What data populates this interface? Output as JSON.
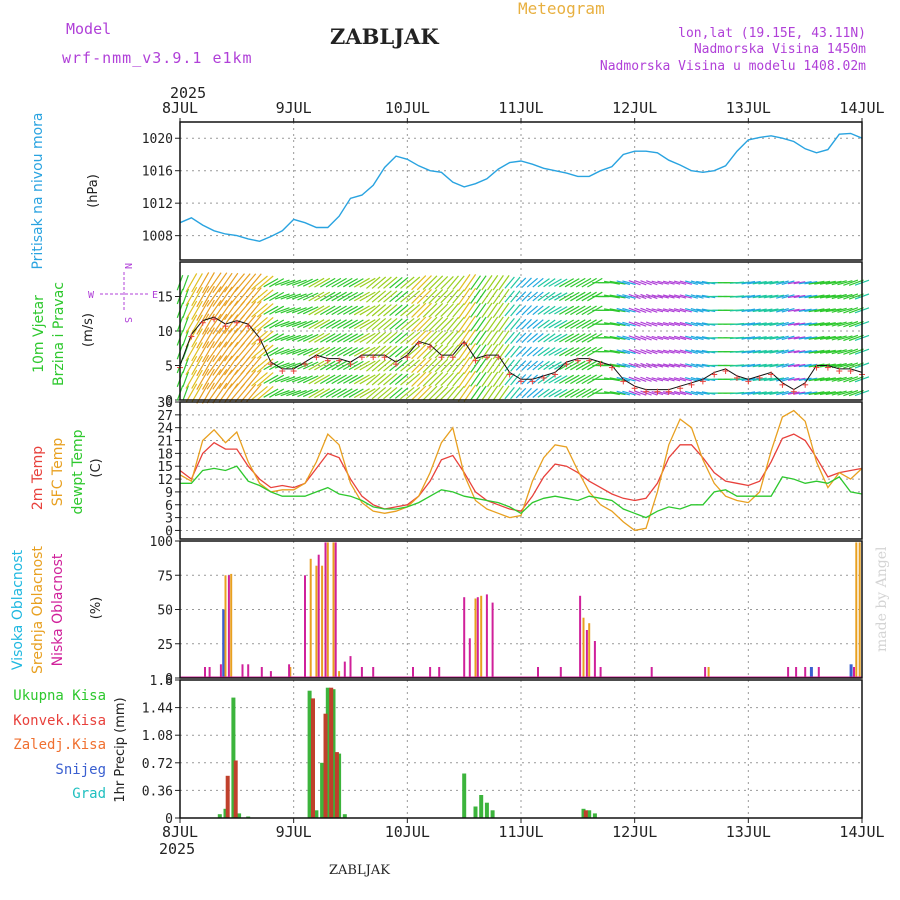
{
  "header": {
    "model_label": "Model",
    "model_name": "wrf-nmm_v3.9.1 e1km",
    "station": "ZABLJAK",
    "title": "Meteogram",
    "coords": "lon,lat (19.15E, 43.11N)",
    "elevation": "Nadmorska Visina 1450m",
    "model_elevation": "Nadmorska Visina u modelu 1408.02m",
    "year_top": "2025",
    "year_bottom": "2025",
    "footer_station": "ZABLJAK",
    "watermark": "made by Angel"
  },
  "colors": {
    "pressure": "#29a3e0",
    "red": "#e8413c",
    "orange": "#e8a020",
    "green": "#2ec82e",
    "purple": "#b040d8",
    "blue": "#3a5fd0",
    "magenta": "#d0209a",
    "cyan": "#20c0c0"
  },
  "chart_data": [
    {
      "type": "line",
      "name": "pressure",
      "ylabel_series": "Pritisak na nivou mora",
      "ylabel_unit": "(hPa)",
      "x_ticks": [
        "8JUL",
        "9JUL",
        "10JUL",
        "11JUL",
        "12JUL",
        "13JUL",
        "14JUL"
      ],
      "ylim": [
        1005,
        1022
      ],
      "y_ticks": [
        "1020",
        "1016",
        "1012",
        "1008"
      ],
      "x": [
        0,
        0.1,
        0.2,
        0.3,
        0.4,
        0.5,
        0.6,
        0.7,
        0.8,
        0.9,
        1.0,
        1.1,
        1.2,
        1.3,
        1.4,
        1.5,
        1.6,
        1.7,
        1.8,
        1.9,
        2.0,
        2.1,
        2.2,
        2.3,
        2.4,
        2.5,
        2.6,
        2.7,
        2.8,
        2.9,
        3.0,
        3.1,
        3.2,
        3.3,
        3.4,
        3.5,
        3.6,
        3.7,
        3.8,
        3.9,
        4.0,
        4.1,
        4.2,
        4.3,
        4.4,
        4.5,
        4.6,
        4.7,
        4.8,
        4.9,
        5.0,
        5.1,
        5.2,
        5.3,
        5.4,
        5.5,
        5.6,
        5.7,
        5.8,
        5.9,
        6.0
      ],
      "values": [
        1009.6,
        1010.2,
        1009.3,
        1008.6,
        1008.2,
        1008.0,
        1007.6,
        1007.3,
        1007.9,
        1008.6,
        1010.0,
        1009.6,
        1009.0,
        1009.0,
        1010.4,
        1012.6,
        1013.0,
        1014.2,
        1016.4,
        1017.8,
        1017.4,
        1016.6,
        1016.0,
        1015.8,
        1014.6,
        1014.0,
        1014.4,
        1015.0,
        1016.2,
        1017.0,
        1017.2,
        1016.8,
        1016.3,
        1016.0,
        1015.7,
        1015.3,
        1015.3,
        1016.0,
        1016.5,
        1018.0,
        1018.4,
        1018.4,
        1018.2,
        1017.3,
        1016.7,
        1016.0,
        1015.8,
        1016.0,
        1016.6,
        1018.4,
        1019.8,
        1020.1,
        1020.3,
        1020.0,
        1019.6,
        1018.7,
        1018.2,
        1018.6,
        1020.5,
        1020.6,
        1020.0
      ]
    },
    {
      "type": "line",
      "name": "wind",
      "ylabel_series_1": "10m Vjetar",
      "ylabel_series_2": "Brzina i Pravac",
      "ylabel_unit": "(m/s)",
      "compass_n": "N",
      "compass_s": "S",
      "compass_w": "W",
      "compass_e": "E",
      "ylim": [
        0,
        20
      ],
      "y_ticks": [
        "15",
        "10",
        "5",
        "0"
      ],
      "x": [
        0,
        0.1,
        0.2,
        0.3,
        0.4,
        0.5,
        0.6,
        0.7,
        0.8,
        0.9,
        1.0,
        1.1,
        1.2,
        1.3,
        1.4,
        1.5,
        1.6,
        1.7,
        1.8,
        1.9,
        2.0,
        2.1,
        2.2,
        2.3,
        2.4,
        2.5,
        2.6,
        2.7,
        2.8,
        2.9,
        3.0,
        3.1,
        3.2,
        3.3,
        3.4,
        3.5,
        3.6,
        3.7,
        3.8,
        3.9,
        4.0,
        4.1,
        4.2,
        4.3,
        4.4,
        4.5,
        4.6,
        4.7,
        4.8,
        4.9,
        5.0,
        5.1,
        5.2,
        5.3,
        5.4,
        5.5,
        5.6,
        5.7,
        5.8,
        5.9,
        6.0
      ],
      "speed": [
        5.0,
        9.5,
        11.5,
        12.0,
        11.0,
        11.5,
        11.0,
        9.0,
        5.5,
        4.5,
        4.5,
        5.5,
        6.5,
        6.0,
        6.0,
        5.5,
        6.5,
        6.5,
        6.5,
        5.5,
        6.5,
        8.5,
        8.0,
        6.5,
        6.5,
        8.5,
        6.0,
        6.5,
        6.5,
        4.0,
        3.0,
        3.0,
        3.5,
        4.0,
        5.5,
        6.0,
        6.0,
        5.5,
        5.0,
        3.0,
        2.0,
        1.5,
        1.5,
        1.5,
        2.0,
        2.5,
        3.0,
        4.0,
        4.5,
        3.5,
        3.0,
        3.5,
        4.0,
        2.5,
        1.5,
        2.5,
        5.0,
        5.0,
        4.5,
        4.5,
        4.0
      ],
      "direction_deg": [
        200,
        210,
        210,
        215,
        215,
        220,
        220,
        230,
        240,
        250,
        250,
        245,
        240,
        240,
        240,
        240,
        240,
        230,
        230,
        230,
        230,
        225,
        225,
        225,
        220,
        215,
        215,
        215,
        215,
        220,
        225,
        230,
        235,
        240,
        240,
        240,
        240,
        270,
        280,
        285,
        290,
        290,
        285,
        285,
        285,
        285,
        280,
        270,
        270,
        265,
        260,
        260,
        260,
        255,
        260,
        260,
        260,
        260,
        255,
        250,
        250
      ]
    },
    {
      "type": "line",
      "name": "temperature",
      "ylabel_series_1": "2m Temp",
      "ylabel_series_2": "SFC Temp",
      "ylabel_series_3": "dewpt Temp",
      "ylabel_unit": "(C)",
      "ylim": [
        -2,
        30
      ],
      "y_ticks": [
        "30",
        "27",
        "24",
        "21",
        "18",
        "15",
        "12",
        "9",
        "6",
        "3",
        "0"
      ],
      "x": [
        0,
        0.1,
        0.2,
        0.3,
        0.4,
        0.5,
        0.6,
        0.7,
        0.8,
        0.9,
        1.0,
        1.1,
        1.2,
        1.3,
        1.4,
        1.5,
        1.6,
        1.7,
        1.8,
        1.9,
        2.0,
        2.1,
        2.2,
        2.3,
        2.4,
        2.5,
        2.6,
        2.7,
        2.8,
        2.9,
        3.0,
        3.1,
        3.2,
        3.3,
        3.4,
        3.5,
        3.6,
        3.7,
        3.8,
        3.9,
        4.0,
        4.1,
        4.2,
        4.3,
        4.4,
        4.5,
        4.6,
        4.7,
        4.8,
        4.9,
        5.0,
        5.1,
        5.2,
        5.3,
        5.4,
        5.5,
        5.6,
        5.7,
        5.8,
        5.9,
        6.0
      ],
      "series": [
        {
          "name": "2m Temp",
          "values": [
            14.0,
            12.0,
            18.0,
            20.5,
            19.0,
            19.0,
            15.0,
            12.0,
            10.0,
            10.5,
            10.0,
            11.0,
            14.5,
            18.0,
            17.0,
            12.0,
            8.0,
            6.0,
            5.0,
            5.5,
            6.0,
            8.0,
            11.5,
            16.5,
            17.5,
            13.5,
            9.0,
            7.0,
            6.0,
            5.0,
            4.5,
            8.0,
            12.5,
            15.5,
            15.0,
            13.5,
            11.5,
            10.0,
            8.5,
            7.5,
            7.0,
            7.5,
            11.0,
            17.0,
            20.0,
            20.0,
            17.0,
            13.5,
            11.5,
            11.0,
            10.5,
            11.5,
            16.0,
            21.5,
            22.5,
            21.0,
            17.0,
            12.5,
            13.5,
            14.0,
            14.5
          ]
        },
        {
          "name": "SFC Temp",
          "values": [
            13.0,
            11.5,
            21.0,
            23.5,
            20.5,
            23.0,
            16.0,
            11.0,
            9.0,
            9.5,
            9.5,
            11.0,
            16.0,
            22.5,
            20.0,
            11.0,
            6.5,
            4.5,
            4.0,
            4.5,
            5.5,
            8.0,
            13.5,
            20.5,
            24.0,
            13.0,
            7.0,
            5.0,
            4.0,
            3.0,
            3.5,
            11.5,
            17.0,
            20.0,
            19.5,
            14.0,
            9.0,
            6.0,
            4.5,
            2.0,
            0.0,
            0.5,
            9.0,
            20.0,
            26.0,
            24.0,
            16.5,
            11.0,
            8.0,
            7.0,
            6.5,
            9.0,
            18.5,
            26.5,
            28.0,
            25.5,
            16.0,
            10.0,
            13.5,
            12.0,
            14.5
          ]
        },
        {
          "name": "dewpt Temp",
          "values": [
            11.0,
            11.0,
            14.0,
            14.5,
            14.0,
            15.0,
            11.5,
            10.5,
            9.0,
            8.0,
            8.0,
            8.0,
            9.0,
            10.0,
            8.5,
            8.0,
            7.0,
            5.5,
            5.0,
            5.0,
            5.5,
            6.5,
            8.0,
            9.5,
            9.0,
            8.0,
            7.5,
            7.0,
            6.5,
            5.5,
            4.0,
            6.5,
            7.5,
            8.0,
            7.5,
            7.0,
            8.0,
            7.5,
            7.0,
            5.0,
            4.0,
            3.0,
            4.5,
            5.5,
            5.0,
            6.0,
            6.0,
            9.0,
            9.5,
            8.0,
            8.0,
            8.0,
            8.0,
            12.5,
            12.0,
            11.0,
            11.5,
            11.0,
            12.5,
            9.0,
            8.5
          ]
        }
      ]
    },
    {
      "type": "bar",
      "name": "cloud",
      "ylabel_series_1": "Visoka Oblacnost",
      "ylabel_series_2": "Srednja Oblacnost",
      "ylabel_series_3": "Niska Oblacnost",
      "ylabel_unit": "(%)",
      "ylim": [
        0,
        100
      ],
      "y_ticks": [
        "100",
        "75",
        "50",
        "25",
        "0"
      ],
      "series": [
        {
          "name": "Visoka",
          "points": [
            [
              0.38,
              50
            ],
            [
              5.55,
              8
            ],
            [
              5.9,
              10
            ]
          ]
        },
        {
          "name": "Srednja",
          "points": [
            [
              0.4,
              75
            ],
            [
              0.45,
              76
            ],
            [
              0.97,
              8
            ],
            [
              1.15,
              87
            ],
            [
              1.2,
              82
            ],
            [
              1.25,
              82
            ],
            [
              1.3,
              99
            ],
            [
              1.35,
              99
            ],
            [
              1.4,
              5
            ],
            [
              2.6,
              58
            ],
            [
              2.65,
              60
            ],
            [
              3.55,
              44
            ],
            [
              3.6,
              40
            ],
            [
              4.65,
              8
            ],
            [
              5.95,
              99
            ],
            [
              5.98,
              99
            ]
          ]
        },
        {
          "name": "Niska",
          "points": [
            [
              0.22,
              8
            ],
            [
              0.26,
              8
            ],
            [
              0.36,
              10
            ],
            [
              0.43,
              75
            ],
            [
              0.55,
              10
            ],
            [
              0.6,
              10
            ],
            [
              0.72,
              8
            ],
            [
              0.8,
              5
            ],
            [
              0.96,
              10
            ],
            [
              1.1,
              75
            ],
            [
              1.22,
              90
            ],
            [
              1.28,
              99
            ],
            [
              1.37,
              99
            ],
            [
              1.45,
              12
            ],
            [
              1.5,
              16
            ],
            [
              1.6,
              8
            ],
            [
              1.7,
              8
            ],
            [
              2.05,
              8
            ],
            [
              2.2,
              8
            ],
            [
              2.28,
              8
            ],
            [
              2.5,
              59
            ],
            [
              2.55,
              29
            ],
            [
              2.62,
              59
            ],
            [
              2.7,
              61
            ],
            [
              2.75,
              55
            ],
            [
              3.15,
              8
            ],
            [
              3.35,
              8
            ],
            [
              3.52,
              60
            ],
            [
              3.58,
              35
            ],
            [
              3.65,
              27
            ],
            [
              3.7,
              8
            ],
            [
              4.15,
              8
            ],
            [
              4.62,
              8
            ],
            [
              5.35,
              8
            ],
            [
              5.42,
              8
            ],
            [
              5.5,
              8
            ],
            [
              5.62,
              8
            ],
            [
              5.93,
              8
            ]
          ]
        }
      ]
    },
    {
      "type": "bar",
      "name": "precip",
      "ylabel_series_1": "Ukupna Kisa",
      "ylabel_series_2": "Konvek.Kisa",
      "ylabel_series_3": "Zaledj.Kisa",
      "ylabel_series_4": "Snijeg",
      "ylabel_series_5": "Grad",
      "ylabel_unit": "1hr Precip (mm)",
      "ylim": [
        0,
        1.8
      ],
      "y_ticks": [
        "1.8",
        "1.44",
        "1.08",
        "0.72",
        "0.36",
        "0"
      ],
      "series": [
        {
          "name": "Ukupna Kisa",
          "points": [
            [
              0.35,
              0.05
            ],
            [
              0.4,
              0.12
            ],
            [
              0.47,
              1.57
            ],
            [
              0.52,
              0.06
            ],
            [
              0.6,
              0.02
            ],
            [
              1.14,
              1.66
            ],
            [
              1.2,
              0.1
            ],
            [
              1.25,
              0.72
            ],
            [
              1.3,
              1.7
            ],
            [
              1.35,
              1.68
            ],
            [
              1.4,
              0.84
            ],
            [
              1.45,
              0.05
            ],
            [
              2.5,
              0.58
            ],
            [
              2.6,
              0.15
            ],
            [
              2.65,
              0.3
            ],
            [
              2.7,
              0.2
            ],
            [
              2.75,
              0.1
            ],
            [
              3.55,
              0.12
            ],
            [
              3.6,
              0.1
            ],
            [
              3.65,
              0.06
            ]
          ]
        },
        {
          "name": "Konvek.Kisa",
          "points": [
            [
              0.42,
              0.55
            ],
            [
              0.49,
              0.75
            ],
            [
              1.17,
              1.56
            ],
            [
              1.28,
              1.36
            ],
            [
              1.33,
              1.7
            ],
            [
              1.38,
              0.86
            ],
            [
              3.57,
              0.1
            ]
          ]
        }
      ]
    }
  ],
  "x_axis": {
    "day_labels": [
      "8JUL",
      "9JUL",
      "10JUL",
      "11JUL",
      "12JUL",
      "13JUL",
      "14JUL"
    ]
  }
}
